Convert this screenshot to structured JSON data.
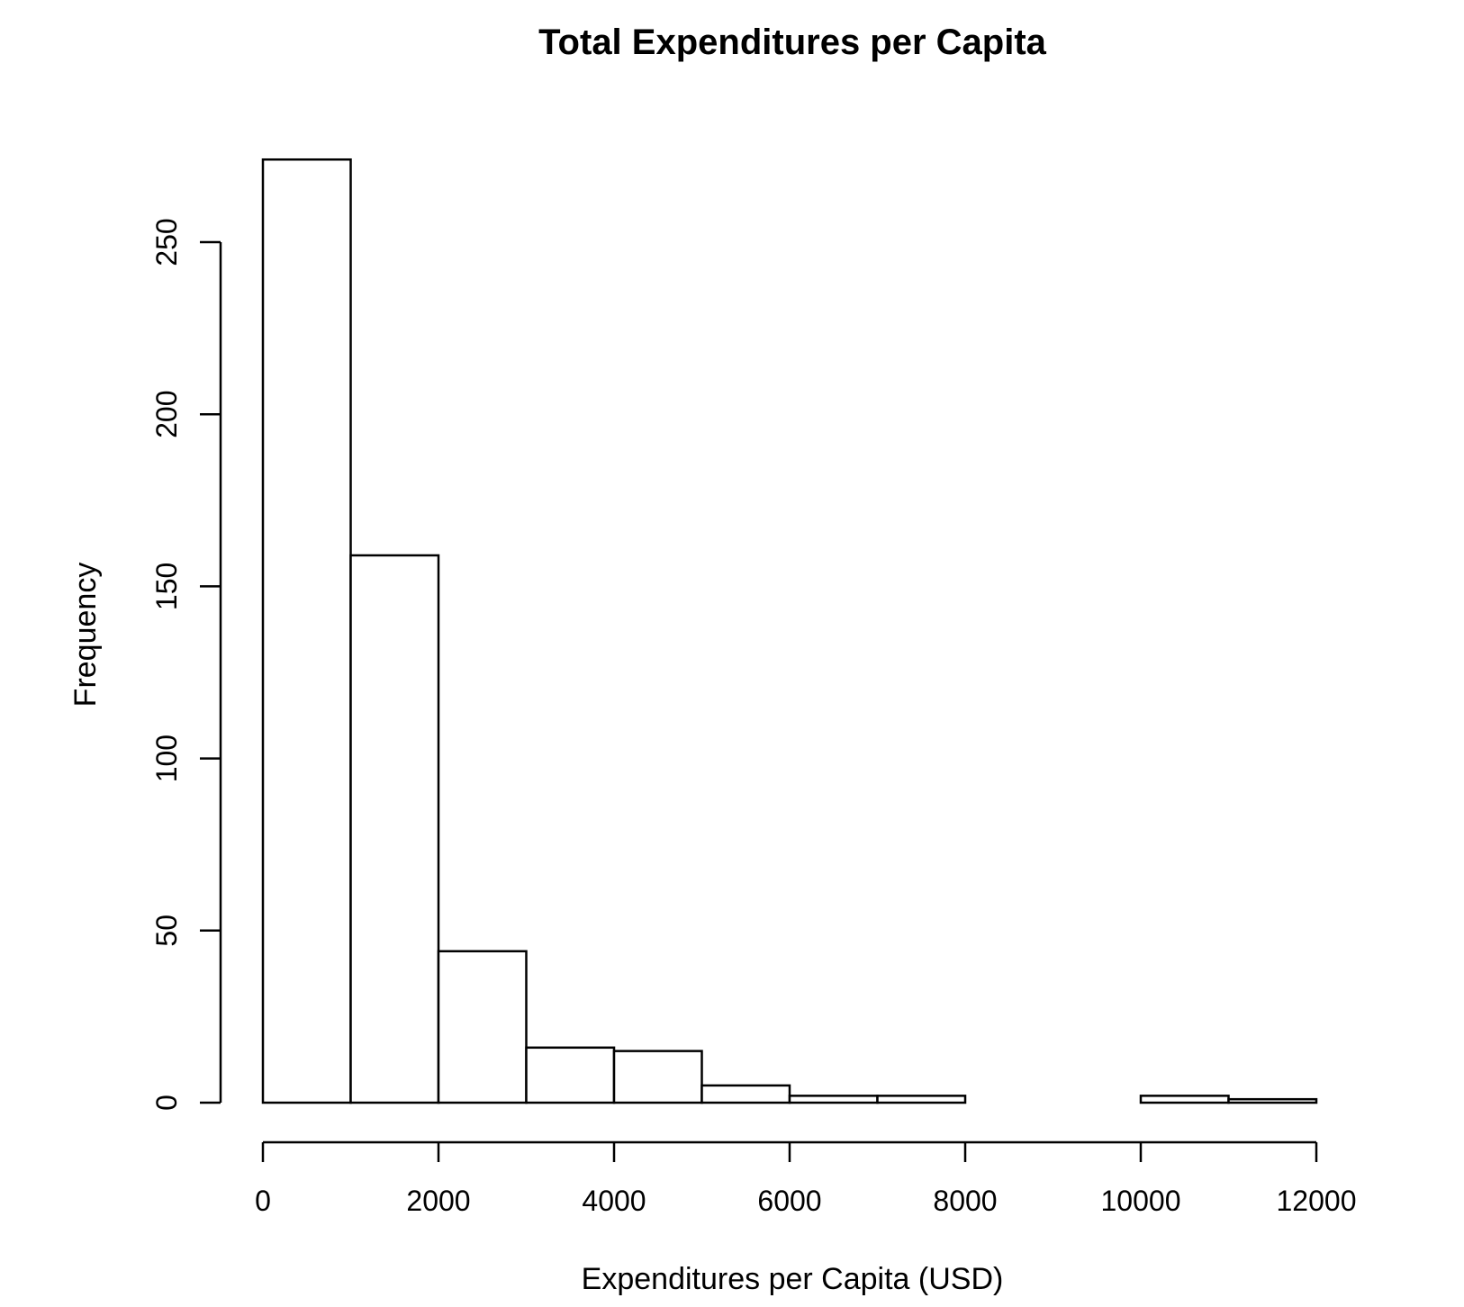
{
  "chart_data": {
    "type": "bar",
    "title": "Total Expenditures per Capita",
    "xlabel": "Expenditures per Capita (USD)",
    "ylabel": "Frequency",
    "bins": [
      {
        "start": 0,
        "end": 1000,
        "count": 274
      },
      {
        "start": 1000,
        "end": 2000,
        "count": 159
      },
      {
        "start": 2000,
        "end": 3000,
        "count": 44
      },
      {
        "start": 3000,
        "end": 4000,
        "count": 16
      },
      {
        "start": 4000,
        "end": 5000,
        "count": 15
      },
      {
        "start": 5000,
        "end": 6000,
        "count": 5
      },
      {
        "start": 6000,
        "end": 7000,
        "count": 2
      },
      {
        "start": 7000,
        "end": 8000,
        "count": 2
      },
      {
        "start": 8000,
        "end": 9000,
        "count": 0
      },
      {
        "start": 9000,
        "end": 10000,
        "count": 0
      },
      {
        "start": 10000,
        "end": 11000,
        "count": 2
      },
      {
        "start": 11000,
        "end": 12000,
        "count": 1
      }
    ],
    "xlim": [
      0,
      12000
    ],
    "ylim": [
      0,
      274
    ],
    "xticks": [
      0,
      2000,
      4000,
      6000,
      8000,
      10000,
      12000
    ],
    "xtick_labels": [
      "0",
      "2000",
      "4000",
      "6000",
      "8000",
      "10000",
      "12000"
    ],
    "yticks": [
      0,
      50,
      100,
      150,
      200,
      250
    ],
    "ytick_labels": [
      "0",
      "50",
      "100",
      "150",
      "200",
      "250"
    ],
    "grid": false,
    "legend": "none",
    "colors": {
      "bar_fill": "#ffffff",
      "bar_stroke": "#000000"
    }
  }
}
